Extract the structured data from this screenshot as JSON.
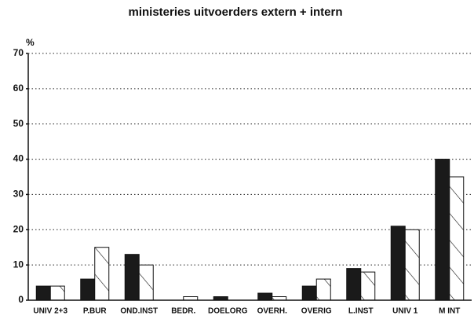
{
  "chart_data": {
    "type": "bar",
    "title": "ministeries uitvoerders extern + intern",
    "ylabel": "%",
    "categories": [
      "UNIV 2+3",
      "P.BUR",
      "OND.INST",
      "BEDR.",
      "DOELORG",
      "OVERH.",
      "OVERIG",
      "L.INST",
      "UNIV 1",
      "M INT"
    ],
    "series": [
      {
        "color": "#1a1a1a",
        "hatch": false,
        "values": [
          4,
          6,
          13,
          0,
          1,
          2,
          4,
          9,
          21,
          40
        ]
      },
      {
        "color": "#ffffff",
        "hatch": true,
        "values": [
          4,
          15,
          10,
          1,
          0,
          1,
          6,
          8,
          20,
          35
        ]
      }
    ],
    "ylim": [
      0,
      70
    ],
    "yticks": [
      0,
      10,
      20,
      30,
      40,
      50,
      60,
      70
    ],
    "grid": true
  }
}
